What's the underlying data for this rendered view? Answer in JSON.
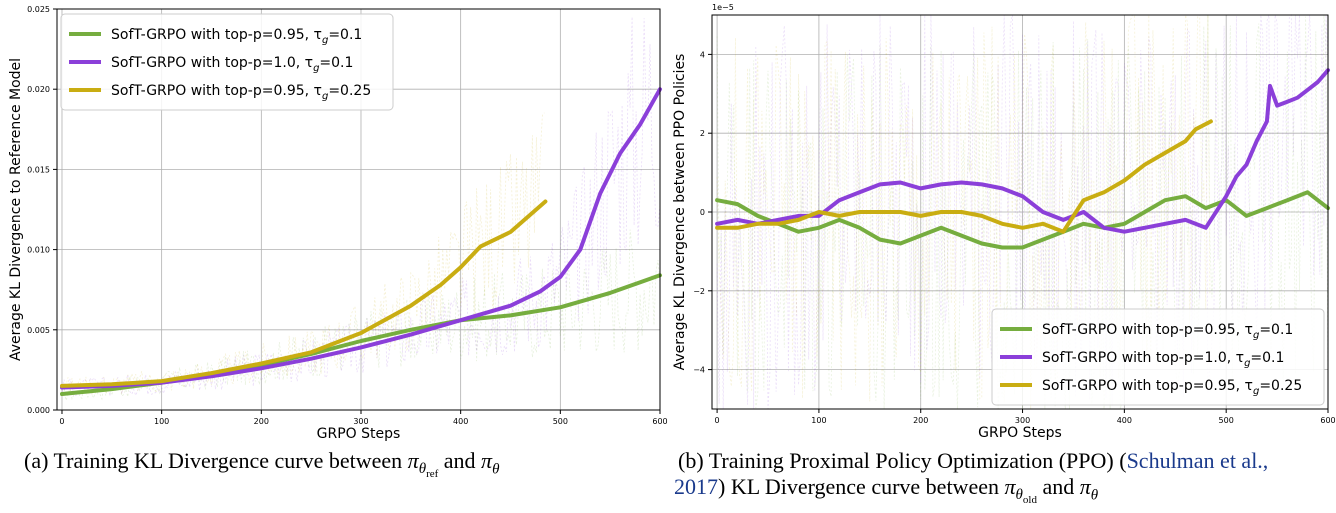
{
  "figure": {
    "caption_a": {
      "prefix": "(a) Training KL Divergence curve between ",
      "pi1": "π",
      "sub1": "θ",
      "subsub1": "ref",
      "and": " and ",
      "pi2": "π",
      "sub2": "θ"
    },
    "caption_b": {
      "line1_prefix": "(b) Training Proximal Policy Optimization (PPO) (",
      "cite1": "Schulman et al.,",
      "line2_cite": "2017",
      "line2_mid": ") KL Divergence curve between ",
      "pi1": "π",
      "sub1": "θ",
      "subsub1": "old",
      "and": " and ",
      "pi2": "π",
      "sub2": "θ"
    }
  },
  "colors": {
    "green": "#76ad3f",
    "purple": "#8b3fd9",
    "gold": "#c9ad12"
  },
  "chart_data": [
    {
      "type": "line",
      "title": "",
      "xlabel": "GRPO Steps",
      "ylabel": "Average KL Divergence to Reference Model",
      "xlim": [
        -5,
        600
      ],
      "ylim": [
        0,
        0.025
      ],
      "xticks": [
        0,
        100,
        200,
        300,
        400,
        500,
        600
      ],
      "yticks": [
        0.0,
        0.005,
        0.01,
        0.015,
        0.02,
        0.025
      ],
      "ytick_labels": [
        "0.000",
        "0.005",
        "0.010",
        "0.015",
        "0.020",
        "0.025"
      ],
      "legend_position": "top-left",
      "grid": true,
      "series": [
        {
          "name": "SofT-GRPO with top-p=0.95, τg=0.1",
          "label_main": "SofT-GRPO with top-p=0.95, τ",
          "label_sub": "g",
          "label_tail": "=0.1",
          "color": "#76ad3f",
          "x": [
            0,
            50,
            100,
            150,
            200,
            250,
            300,
            350,
            400,
            450,
            500,
            550,
            600
          ],
          "y": [
            0.001,
            0.0013,
            0.0017,
            0.0022,
            0.0028,
            0.0035,
            0.0043,
            0.005,
            0.0056,
            0.0059,
            0.0064,
            0.0073,
            0.0084
          ]
        },
        {
          "name": "SofT-GRPO with top-p=1.0, τg=0.1",
          "label_main": "SofT-GRPO with top-p=1.0, τ",
          "label_sub": "g",
          "label_tail": "=0.1",
          "color": "#8b3fd9",
          "x": [
            0,
            50,
            100,
            150,
            200,
            250,
            300,
            350,
            400,
            450,
            480,
            500,
            520,
            540,
            560,
            580,
            600
          ],
          "y": [
            0.0014,
            0.0015,
            0.0017,
            0.0021,
            0.0026,
            0.0032,
            0.0039,
            0.0047,
            0.0056,
            0.0065,
            0.0074,
            0.0083,
            0.01,
            0.0135,
            0.016,
            0.0178,
            0.02
          ]
        },
        {
          "name": "SofT-GRPO with top-p=0.95, τg=0.25",
          "label_main": "SofT-GRPO with top-p=0.95, τ",
          "label_sub": "g",
          "label_tail": "=0.25",
          "color": "#c9ad12",
          "x": [
            0,
            50,
            100,
            150,
            200,
            250,
            300,
            350,
            380,
            400,
            420,
            450,
            485
          ],
          "y": [
            0.0015,
            0.0016,
            0.0018,
            0.0023,
            0.0029,
            0.0036,
            0.0048,
            0.0065,
            0.0078,
            0.0089,
            0.0102,
            0.0111,
            0.013
          ]
        }
      ]
    },
    {
      "type": "line",
      "title": "",
      "xlabel": "GRPO Steps",
      "ylabel": "Average KL Divergence between PPO Policies",
      "offset_text": "1e−5",
      "xlim": [
        -5,
        600
      ],
      "ylim": [
        -5,
        5
      ],
      "xticks": [
        0,
        100,
        200,
        300,
        400,
        500,
        600
      ],
      "yticks": [
        -4,
        -2,
        0,
        2,
        4
      ],
      "ytick_labels": [
        "−4",
        "−2",
        "0",
        "2",
        "4"
      ],
      "legend_position": "bottom-right",
      "grid": true,
      "series": [
        {
          "name": "SofT-GRPO with top-p=0.95, τg=0.1",
          "label_main": "SofT-GRPO with top-p=0.95, τ",
          "label_sub": "g",
          "label_tail": "=0.1",
          "color": "#76ad3f",
          "x": [
            0,
            20,
            40,
            60,
            80,
            100,
            120,
            140,
            160,
            180,
            200,
            220,
            240,
            260,
            280,
            300,
            320,
            340,
            360,
            380,
            400,
            420,
            440,
            460,
            480,
            500,
            520,
            540,
            560,
            580,
            600
          ],
          "y": [
            0.3,
            0.2,
            -0.1,
            -0.3,
            -0.5,
            -0.4,
            -0.2,
            -0.4,
            -0.7,
            -0.8,
            -0.6,
            -0.4,
            -0.6,
            -0.8,
            -0.9,
            -0.9,
            -0.7,
            -0.5,
            -0.3,
            -0.4,
            -0.3,
            0.0,
            0.3,
            0.4,
            0.1,
            0.3,
            -0.1,
            0.1,
            0.3,
            0.5,
            0.1
          ]
        },
        {
          "name": "SofT-GRPO with top-p=1.0, τg=0.1",
          "label_main": "SofT-GRPO with top-p=1.0, τ",
          "label_sub": "g",
          "label_tail": "=0.1",
          "color": "#8b3fd9",
          "x": [
            0,
            20,
            40,
            60,
            80,
            100,
            120,
            140,
            160,
            180,
            200,
            220,
            240,
            260,
            280,
            300,
            320,
            340,
            360,
            380,
            400,
            420,
            440,
            460,
            480,
            500,
            510,
            520,
            530,
            540,
            543,
            550,
            560,
            570,
            580,
            590,
            600
          ],
          "y": [
            -0.3,
            -0.2,
            -0.3,
            -0.2,
            -0.1,
            -0.1,
            0.3,
            0.5,
            0.7,
            0.75,
            0.6,
            0.7,
            0.75,
            0.7,
            0.6,
            0.4,
            0.0,
            -0.2,
            0.0,
            -0.4,
            -0.5,
            -0.4,
            -0.3,
            -0.2,
            -0.4,
            0.4,
            0.9,
            1.2,
            1.8,
            2.3,
            3.2,
            2.7,
            2.8,
            2.9,
            3.1,
            3.3,
            3.6
          ]
        },
        {
          "name": "SofT-GRPO with top-p=0.95, τg=0.25",
          "label_main": "SofT-GRPO with top-p=0.95, τ",
          "label_sub": "g",
          "label_tail": "=0.25",
          "color": "#c9ad12",
          "x": [
            0,
            20,
            40,
            60,
            80,
            100,
            120,
            140,
            160,
            180,
            200,
            220,
            240,
            260,
            280,
            300,
            320,
            340,
            360,
            380,
            400,
            420,
            440,
            460,
            470,
            485
          ],
          "y": [
            -0.4,
            -0.4,
            -0.3,
            -0.3,
            -0.2,
            0.0,
            -0.1,
            0.0,
            0.0,
            0.0,
            -0.1,
            0.0,
            0.0,
            -0.1,
            -0.3,
            -0.4,
            -0.3,
            -0.5,
            0.3,
            0.5,
            0.8,
            1.2,
            1.5,
            1.8,
            2.1,
            2.3
          ]
        }
      ]
    }
  ]
}
